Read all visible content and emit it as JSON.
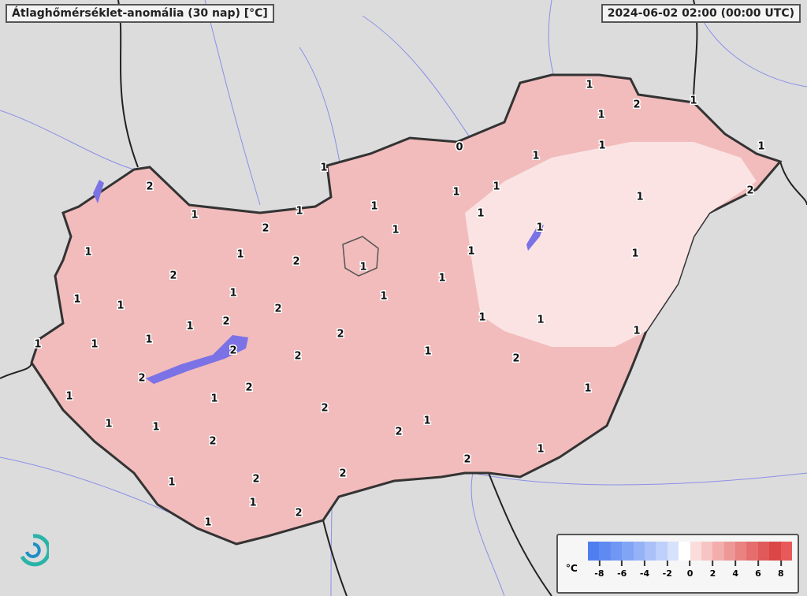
{
  "title": "Átlaghőmérséklet-anomália (30 nap) [°C]",
  "timestamp": "2024-06-02 02:00 (00:00 UTC)",
  "legend": {
    "unit": "°C",
    "ticks": [
      "-8",
      "-6",
      "-4",
      "-2",
      "0",
      "2",
      "4",
      "6",
      "8"
    ],
    "colors": [
      "#4f7ef0",
      "#5f8af2",
      "#7097f3",
      "#82a4f5",
      "#95b2f7",
      "#a9c1f8",
      "#bed0fa",
      "#d6e2fc",
      "#ffffff",
      "#fbdcdc",
      "#f7c4c4",
      "#f3adad",
      "#ee9797",
      "#ea8282",
      "#e56d6d",
      "#e15a5a",
      "#dc4646",
      "#e85a5a"
    ]
  },
  "colors": {
    "anomaly_1": "#f4c9c9",
    "anomaly_2": "#f0b4b4",
    "anomaly_0": "#fbe6e6",
    "water": "#7b72e6",
    "background": "#dcdcdc"
  },
  "stations": [
    "1",
    "2",
    "1",
    "1",
    "1",
    "1",
    "0",
    "1",
    "1",
    "2",
    "1",
    "1",
    "1",
    "2",
    "1",
    "1",
    "1",
    "1",
    "2",
    "1",
    "1",
    "1",
    "1",
    "2",
    "1",
    "1",
    "1",
    "2",
    "1",
    "1",
    "1",
    "1",
    "1",
    "2",
    "1",
    "1",
    "1",
    "2",
    "1",
    "1",
    "1",
    "1",
    "2",
    "2",
    "2",
    "1",
    "2",
    "2",
    "1",
    "1",
    "2",
    "1",
    "2",
    "1",
    "1",
    "1",
    "2",
    "2",
    "1",
    "2",
    "2",
    "1",
    "2",
    "1",
    "2",
    "1"
  ],
  "logo": "weather-service-logo"
}
